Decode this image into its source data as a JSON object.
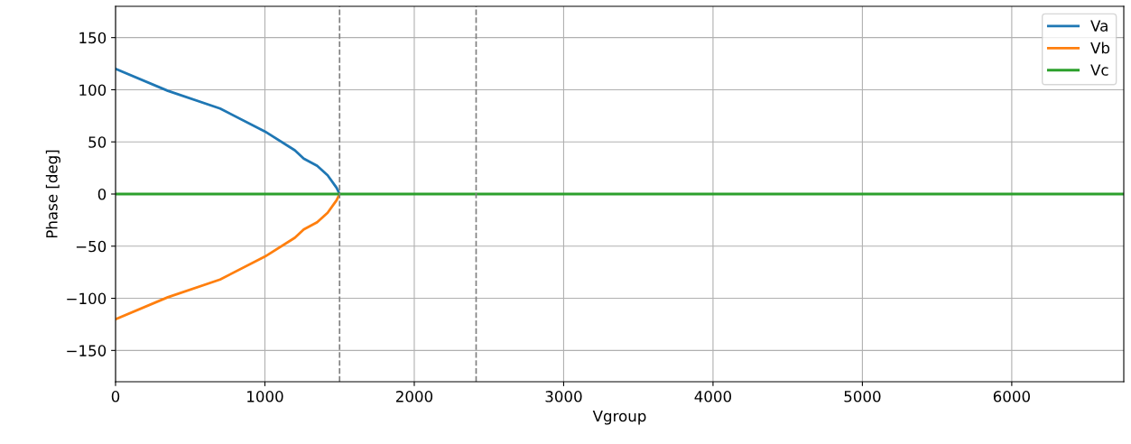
{
  "chart_data": {
    "type": "line",
    "xlabel": "Vgroup",
    "ylabel": "Phase [deg]",
    "xlim": [
      0,
      6750
    ],
    "ylim": [
      -180,
      180
    ],
    "xticks": [
      0,
      1000,
      2000,
      3000,
      4000,
      5000,
      6000
    ],
    "yticks": [
      {
        "value": -150,
        "label": "−150"
      },
      {
        "value": -100,
        "label": "−100"
      },
      {
        "value": -50,
        "label": "−50"
      },
      0,
      50,
      100,
      150
    ],
    "grid": true,
    "legend": "top right",
    "line_style": "solid",
    "marker": "none",
    "ref_lines": [
      {
        "axis": "x",
        "value": 1500,
        "color": "#808080",
        "line_style": "dashed"
      },
      {
        "axis": "x",
        "value": 2414,
        "color": "#808080",
        "line_style": "dashed"
      }
    ],
    "series": [
      {
        "name": "Va",
        "color": "#1f77b4",
        "x": [
          0,
          350,
          700,
          1000,
          1200,
          1260,
          1350,
          1420,
          1480,
          1500
        ],
        "values": [
          120,
          99,
          82,
          60,
          42,
          34,
          27,
          18,
          6,
          0
        ]
      },
      {
        "name": "Vb",
        "color": "#ff7f0e",
        "x": [
          0,
          350,
          700,
          1000,
          1200,
          1260,
          1350,
          1420,
          1480,
          1500
        ],
        "values": [
          -120,
          -99,
          -82,
          -60,
          -42,
          -34,
          -27,
          -18,
          -6,
          0
        ]
      },
      {
        "name": "Vc",
        "color": "#2ca02c",
        "x": [
          0,
          6750
        ],
        "values": [
          0,
          0
        ]
      }
    ]
  }
}
